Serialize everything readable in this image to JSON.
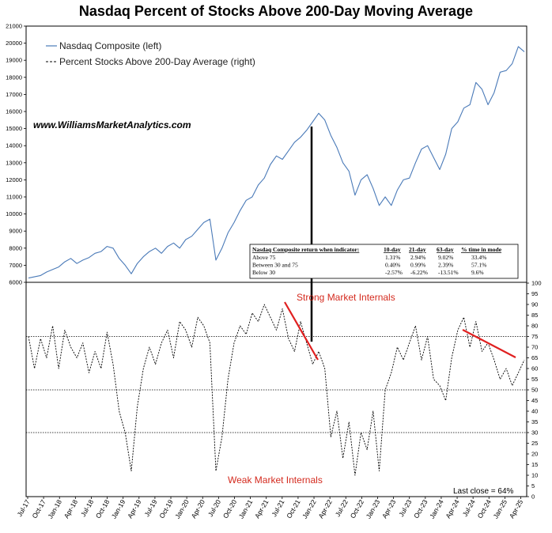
{
  "chart_data": {
    "type": "line",
    "title": "Nasdaq Percent of Stocks Above 200-Day Moving Average",
    "website": "www.WilliamsMarketAnalytics.com",
    "x_tick_labels": [
      "Jul-17",
      "Oct-17",
      "Jan-18",
      "Apr-18",
      "Jul-18",
      "Oct-18",
      "Jan-19",
      "Apr-19",
      "Jul-19",
      "Oct-19",
      "Jan-20",
      "Apr-20",
      "Jul-20",
      "Oct-20",
      "Jan-21",
      "Apr-21",
      "Jul-21",
      "Oct-21",
      "Jan-22",
      "Apr-22",
      "Jul-22",
      "Oct-22",
      "Jan-23",
      "Apr-23",
      "Jul-23",
      "Oct-23",
      "Jan-24",
      "Apr-24",
      "Jul-24",
      "Oct-24",
      "Jan-25",
      "Apr-25"
    ],
    "left_axis": {
      "ticks": [
        6000,
        7000,
        8000,
        9000,
        10000,
        11000,
        12000,
        13000,
        14000,
        15000,
        16000,
        17000,
        18000,
        19000,
        20000,
        21000
      ],
      "range": [
        6000,
        21000
      ]
    },
    "right_axis": {
      "ticks": [
        0,
        5,
        10,
        15,
        20,
        25,
        30,
        35,
        40,
        45,
        50,
        55,
        60,
        65,
        70,
        75,
        80,
        85,
        90,
        95,
        100
      ],
      "range": [
        0,
        100
      ]
    },
    "reference_lines": [
      75,
      50,
      30
    ],
    "series": [
      {
        "name": "Nasdaq Composite (left)",
        "style": "solid",
        "color": "#4a7ab8",
        "points": [
          [
            0,
            6250
          ],
          [
            2,
            6400
          ],
          [
            3,
            6600
          ],
          [
            4,
            6750
          ],
          [
            5,
            6900
          ],
          [
            6,
            7200
          ],
          [
            7,
            7400
          ],
          [
            8,
            7100
          ],
          [
            9,
            7300
          ],
          [
            10,
            7450
          ],
          [
            11,
            7700
          ],
          [
            12,
            7800
          ],
          [
            13,
            8100
          ],
          [
            14,
            8000
          ],
          [
            15,
            7400
          ],
          [
            16,
            7000
          ],
          [
            17,
            6500
          ],
          [
            18,
            7100
          ],
          [
            19,
            7500
          ],
          [
            20,
            7800
          ],
          [
            21,
            8000
          ],
          [
            22,
            7700
          ],
          [
            23,
            8100
          ],
          [
            24,
            8300
          ],
          [
            25,
            8000
          ],
          [
            26,
            8500
          ],
          [
            27,
            8700
          ],
          [
            28,
            9100
          ],
          [
            29,
            9500
          ],
          [
            30,
            9700
          ],
          [
            31,
            7300
          ],
          [
            32,
            8000
          ],
          [
            33,
            8900
          ],
          [
            34,
            9500
          ],
          [
            35,
            10200
          ],
          [
            36,
            10800
          ],
          [
            37,
            11000
          ],
          [
            38,
            11700
          ],
          [
            39,
            12100
          ],
          [
            40,
            12900
          ],
          [
            41,
            13400
          ],
          [
            42,
            13200
          ],
          [
            43,
            13700
          ],
          [
            44,
            14200
          ],
          [
            45,
            14500
          ],
          [
            46,
            14900
          ],
          [
            47,
            15400
          ],
          [
            48,
            15900
          ],
          [
            49,
            15500
          ],
          [
            50,
            14600
          ],
          [
            51,
            13900
          ],
          [
            52,
            13000
          ],
          [
            53,
            12500
          ],
          [
            54,
            11100
          ],
          [
            55,
            12000
          ],
          [
            56,
            12300
          ],
          [
            57,
            11500
          ],
          [
            58,
            10500
          ],
          [
            59,
            11000
          ],
          [
            60,
            10500
          ],
          [
            61,
            11400
          ],
          [
            62,
            12000
          ],
          [
            63,
            12100
          ],
          [
            64,
            13000
          ],
          [
            65,
            13800
          ],
          [
            66,
            14000
          ],
          [
            67,
            13300
          ],
          [
            68,
            12600
          ],
          [
            69,
            13500
          ],
          [
            70,
            15000
          ],
          [
            71,
            15400
          ],
          [
            72,
            16200
          ],
          [
            73,
            16400
          ],
          [
            74,
            17700
          ],
          [
            75,
            17300
          ],
          [
            76,
            16400
          ],
          [
            77,
            17100
          ],
          [
            78,
            18300
          ],
          [
            79,
            18400
          ],
          [
            80,
            18800
          ],
          [
            81,
            19800
          ],
          [
            82,
            19500
          ]
        ]
      },
      {
        "name": "Percent Stocks Above 200-Day Average (right)",
        "style": "dashed",
        "color": "#000000",
        "points": [
          [
            0,
            75
          ],
          [
            1,
            60
          ],
          [
            2,
            74
          ],
          [
            3,
            65
          ],
          [
            4,
            80
          ],
          [
            5,
            60
          ],
          [
            6,
            78
          ],
          [
            7,
            70
          ],
          [
            8,
            65
          ],
          [
            9,
            72
          ],
          [
            10,
            58
          ],
          [
            11,
            68
          ],
          [
            12,
            60
          ],
          [
            13,
            77
          ],
          [
            14,
            62
          ],
          [
            15,
            40
          ],
          [
            16,
            30
          ],
          [
            17,
            12
          ],
          [
            18,
            42
          ],
          [
            19,
            60
          ],
          [
            20,
            70
          ],
          [
            21,
            62
          ],
          [
            22,
            72
          ],
          [
            23,
            78
          ],
          [
            24,
            65
          ],
          [
            25,
            82
          ],
          [
            26,
            78
          ],
          [
            27,
            70
          ],
          [
            28,
            84
          ],
          [
            29,
            80
          ],
          [
            30,
            72
          ],
          [
            31,
            12
          ],
          [
            32,
            28
          ],
          [
            33,
            55
          ],
          [
            34,
            72
          ],
          [
            35,
            80
          ],
          [
            36,
            76
          ],
          [
            37,
            86
          ],
          [
            38,
            82
          ],
          [
            39,
            90
          ],
          [
            40,
            84
          ],
          [
            41,
            78
          ],
          [
            42,
            88
          ],
          [
            43,
            74
          ],
          [
            44,
            68
          ],
          [
            45,
            82
          ],
          [
            46,
            72
          ],
          [
            47,
            62
          ],
          [
            48,
            68
          ],
          [
            49,
            60
          ],
          [
            50,
            28
          ],
          [
            51,
            40
          ],
          [
            52,
            18
          ],
          [
            53,
            35
          ],
          [
            54,
            10
          ],
          [
            55,
            30
          ],
          [
            56,
            22
          ],
          [
            57,
            40
          ],
          [
            58,
            12
          ],
          [
            59,
            50
          ],
          [
            60,
            58
          ],
          [
            61,
            70
          ],
          [
            62,
            64
          ],
          [
            63,
            72
          ],
          [
            64,
            80
          ],
          [
            65,
            64
          ],
          [
            66,
            75
          ],
          [
            67,
            55
          ],
          [
            68,
            52
          ],
          [
            69,
            45
          ],
          [
            70,
            65
          ],
          [
            71,
            78
          ],
          [
            72,
            84
          ],
          [
            73,
            70
          ],
          [
            74,
            82
          ],
          [
            75,
            68
          ],
          [
            76,
            72
          ],
          [
            77,
            64
          ],
          [
            78,
            55
          ],
          [
            79,
            60
          ],
          [
            80,
            52
          ],
          [
            81,
            58
          ],
          [
            82,
            64
          ]
        ]
      }
    ],
    "table": {
      "headers": [
        "Nasdaq Composite return when indicator:",
        "10-day",
        "21-day",
        "63-day",
        "% time in mode"
      ],
      "rows": [
        [
          "Above 75",
          "1.31%",
          "2.94%",
          "9.02%",
          "33.4%"
        ],
        [
          "Between 30 and 75",
          "0.40%",
          "0.99%",
          "2.39%",
          "57.1%"
        ],
        [
          "Below 30",
          "-2.57%",
          "-6.22%",
          "-13.51%",
          "9.6%"
        ]
      ]
    },
    "annotations": {
      "strong": "Strong Market Internals",
      "weak": "Weak Market Internals",
      "last_close": "Last close = 64%"
    },
    "colors": {
      "nasdaq": "#4a7ab8",
      "percent": "#000000",
      "annotation": "#d42a1e",
      "trend": "#e02020"
    }
  }
}
